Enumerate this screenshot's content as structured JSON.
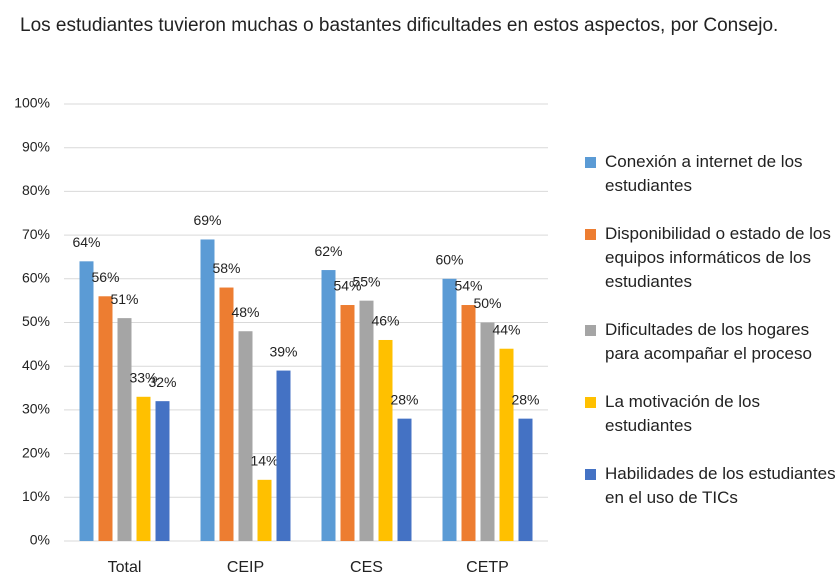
{
  "chart_data": {
    "type": "bar",
    "title": "Los estudiantes tuvieron muchas o bastantes dificultades en estos aspectos, por Consejo.",
    "categories": [
      "Total",
      "CEIP",
      "CES",
      "CETP"
    ],
    "series": [
      {
        "name": "Conexión a internet de los estudiantes",
        "color": "#5b9bd5",
        "values": [
          64,
          69,
          62,
          60
        ],
        "value_labels": [
          "64%",
          "69%",
          "62%",
          "60%"
        ]
      },
      {
        "name": "Disponibilidad o estado de los equipos informáticos de los estudiantes",
        "color": "#ed7d31",
        "values": [
          56,
          58,
          54,
          54
        ],
        "value_labels": [
          "56%",
          "58%",
          "54%",
          "54%"
        ]
      },
      {
        "name": "Dificultades de los hogares para acompañar el proceso",
        "color": "#a5a5a5",
        "values": [
          51,
          48,
          55,
          50
        ],
        "value_labels": [
          "51%",
          "48%",
          "55%",
          "50%"
        ]
      },
      {
        "name": "La motivación de los estudiantes",
        "color": "#ffc000",
        "values": [
          33,
          14,
          46,
          44
        ],
        "value_labels": [
          "33%",
          "14%",
          "46%",
          "44%"
        ]
      },
      {
        "name": "Habilidades de los estudiantes en el uso de TICs",
        "color": "#4472c4",
        "values": [
          32,
          39,
          28,
          28
        ],
        "value_labels": [
          "32%",
          "39%",
          "28%",
          "28%"
        ]
      }
    ],
    "ylim": [
      0,
      100
    ],
    "yticks": [
      {
        "value": 0,
        "label": "0%"
      },
      {
        "value": 10,
        "label": "10%"
      },
      {
        "value": 20,
        "label": "20%"
      },
      {
        "value": 30,
        "label": "30%"
      },
      {
        "value": 40,
        "label": "40%"
      },
      {
        "value": 50,
        "label": "50%"
      },
      {
        "value": 60,
        "label": "60%"
      },
      {
        "value": 70,
        "label": "70%"
      },
      {
        "value": 80,
        "label": "80%"
      },
      {
        "value": 90,
        "label": "90%"
      },
      {
        "value": 100,
        "label": "100%"
      }
    ],
    "grid": true,
    "legend": "right"
  }
}
